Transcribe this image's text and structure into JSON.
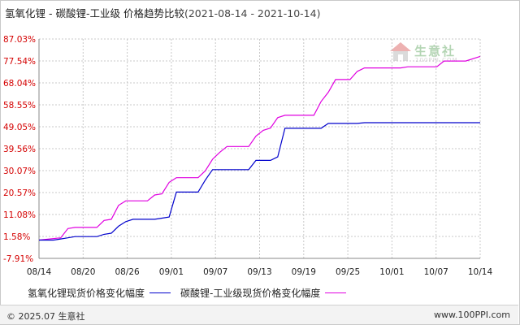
{
  "title": {
    "main": "氢氧化锂 - 碳酸锂-工业级 价格趋势比较",
    "range": "(2021-08-14 - 2021-10-14)"
  },
  "watermark": {
    "text": "生意社",
    "sub": "100PPI.COM",
    "icon": "house-logo-icon"
  },
  "footer": {
    "copyright": "© 2025.07 生意社",
    "site": "www.100PPI.com"
  },
  "colors": {
    "series1": "#0000cc",
    "series2": "#e000e0",
    "axis_label": "#d40000",
    "grid": "#c8c8c8"
  },
  "chart_data": {
    "type": "line",
    "title": "氢氧化锂 - 碳酸锂-工业级 价格趋势比较",
    "x_ticks": [
      "08/14",
      "08/20",
      "08/26",
      "09/01",
      "09/07",
      "09/13",
      "09/19",
      "09/25",
      "10/01",
      "10/07",
      "10/14"
    ],
    "y_ticks": [
      "87.03%",
      "77.54%",
      "68.04%",
      "58.55%",
      "49.05%",
      "39.56%",
      "30.07%",
      "20.57%",
      "11.08%",
      "1.58%",
      "-7.91%"
    ],
    "ylim": [
      -7.91,
      87.03
    ],
    "x_unit": "day index from 08/14",
    "legend_position": "bottom",
    "grid": true,
    "series": [
      {
        "name": "氢氧化锂现货价格变化幅度",
        "points": [
          [
            0,
            0
          ],
          [
            2,
            0
          ],
          [
            3,
            0.5
          ],
          [
            4,
            1
          ],
          [
            5,
            1.5
          ],
          [
            8,
            1.5
          ],
          [
            9,
            2.5
          ],
          [
            10,
            3
          ],
          [
            11,
            6
          ],
          [
            12,
            8
          ],
          [
            13,
            9
          ],
          [
            16,
            9
          ],
          [
            17,
            9.5
          ],
          [
            18,
            10
          ],
          [
            19,
            20.8
          ],
          [
            22,
            20.8
          ],
          [
            23,
            26
          ],
          [
            24,
            30.5
          ],
          [
            29,
            30.5
          ],
          [
            30,
            34.5
          ],
          [
            32,
            34.5
          ],
          [
            33,
            36
          ],
          [
            34,
            48.4
          ],
          [
            39,
            48.4
          ],
          [
            40,
            50.5
          ],
          [
            44,
            50.5
          ],
          [
            45,
            50.8
          ],
          [
            61,
            50.8
          ]
        ]
      },
      {
        "name": "碳酸锂-工业级现货价格变化幅度",
        "points": [
          [
            0,
            0
          ],
          [
            3,
            1
          ],
          [
            4,
            5
          ],
          [
            5,
            5.5
          ],
          [
            8,
            5.5
          ],
          [
            9,
            8.5
          ],
          [
            10,
            9
          ],
          [
            11,
            15
          ],
          [
            12,
            17
          ],
          [
            15,
            17
          ],
          [
            16,
            19.5
          ],
          [
            17,
            20
          ],
          [
            18,
            25
          ],
          [
            19,
            27
          ],
          [
            22,
            27
          ],
          [
            23,
            30
          ],
          [
            24,
            35
          ],
          [
            25,
            38
          ],
          [
            26,
            40.5
          ],
          [
            29,
            40.5
          ],
          [
            30,
            45
          ],
          [
            31,
            47.5
          ],
          [
            32,
            48.5
          ],
          [
            33,
            53
          ],
          [
            34,
            54
          ],
          [
            38,
            54
          ],
          [
            39,
            60
          ],
          [
            40,
            64
          ],
          [
            41,
            69.5
          ],
          [
            43,
            69.5
          ],
          [
            44,
            73
          ],
          [
            45,
            74.5
          ],
          [
            50,
            74.5
          ],
          [
            51,
            75
          ],
          [
            55,
            75
          ],
          [
            56,
            77.5
          ],
          [
            59,
            77.5
          ],
          [
            61,
            79.5
          ]
        ]
      }
    ]
  }
}
